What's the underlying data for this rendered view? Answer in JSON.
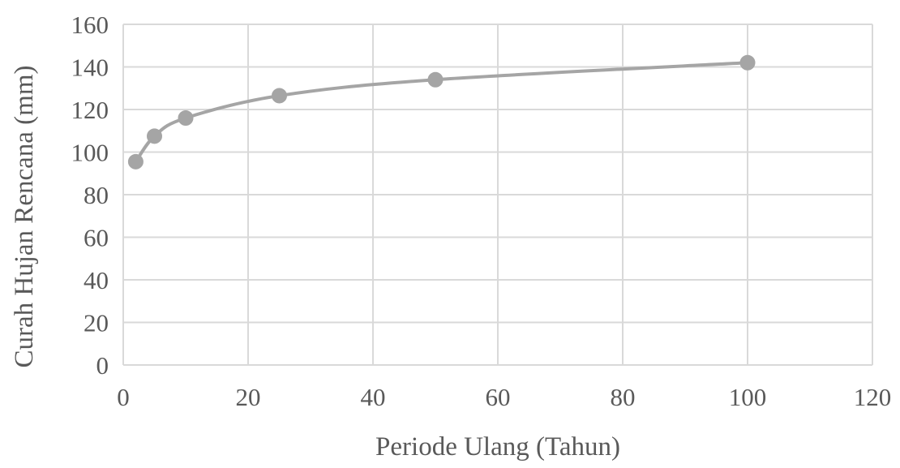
{
  "chart_data": {
    "type": "scatter",
    "title": "",
    "xlabel": "Periode Ulang (Tahun)",
    "ylabel": "Curah Hujan Rencana (mm)",
    "xlim": [
      0,
      120
    ],
    "ylim": [
      0,
      160
    ],
    "xticks": [
      0,
      20,
      40,
      60,
      80,
      100,
      120
    ],
    "yticks": [
      0,
      20,
      40,
      60,
      80,
      100,
      120,
      140,
      160
    ],
    "grid": true,
    "legend": "none",
    "series": [
      {
        "style": "smooth line with markers",
        "color": "#a5a5a5",
        "x": [
          2,
          5,
          10,
          25,
          50,
          100
        ],
        "y": [
          95.5,
          107.5,
          116,
          126.5,
          134,
          142
        ]
      }
    ]
  },
  "colors": {
    "gridline": "#d9d9d9",
    "axis_line": "#d9d9d9",
    "text": "#595959",
    "series": "#a5a5a5"
  }
}
